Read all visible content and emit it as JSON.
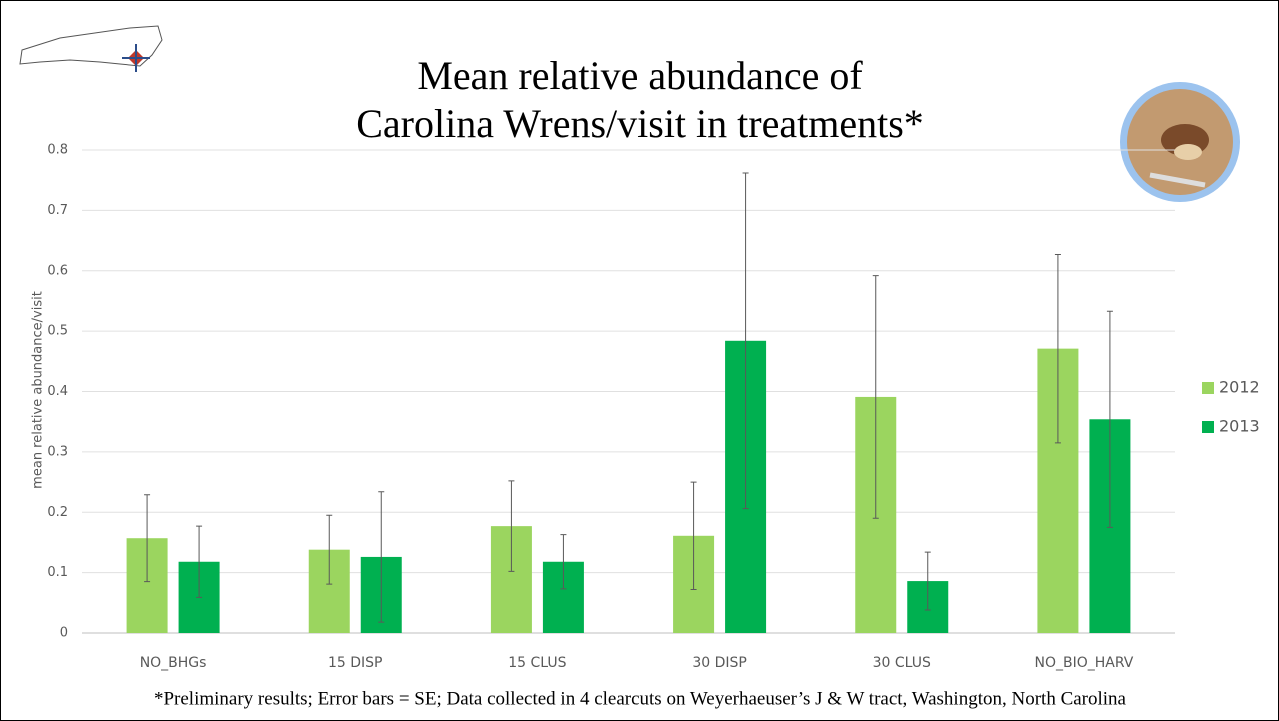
{
  "chart_data": {
    "type": "bar",
    "title": "Mean relative abundance of",
    "subtitle": "Carolina Wrens/visit in treatments*",
    "y_label": "mean relative abundance/visit",
    "categories": [
      "NO_BHGs",
      "15 DISP",
      "15 CLUS",
      "30 DISP",
      "30 CLUS",
      "NO_BIO_HARV"
    ],
    "series": [
      {
        "name": "2012",
        "color": "#9bd55f",
        "values": [
          0.157,
          0.138,
          0.177,
          0.161,
          0.391,
          0.471
        ],
        "errors": [
          0.072,
          0.057,
          0.075,
          0.089,
          0.201,
          0.156
        ]
      },
      {
        "name": "2013",
        "color": "#00b050",
        "values": [
          0.118,
          0.126,
          0.118,
          0.484,
          0.086,
          0.354
        ],
        "errors": [
          0.059,
          0.108,
          0.045,
          0.278,
          0.048,
          0.179
        ]
      }
    ],
    "ylim": [
      0,
      0.8
    ],
    "yticks": [
      0,
      0.1,
      0.2,
      0.3,
      0.4,
      0.5,
      0.6,
      0.7,
      0.8
    ],
    "grid": true,
    "legend": "right",
    "footnote": "*Preliminary results; Error bars = SE; Data collected in 4 clearcuts on Weyerhaeuser’s J & W tract, Washington, North Carolina"
  }
}
